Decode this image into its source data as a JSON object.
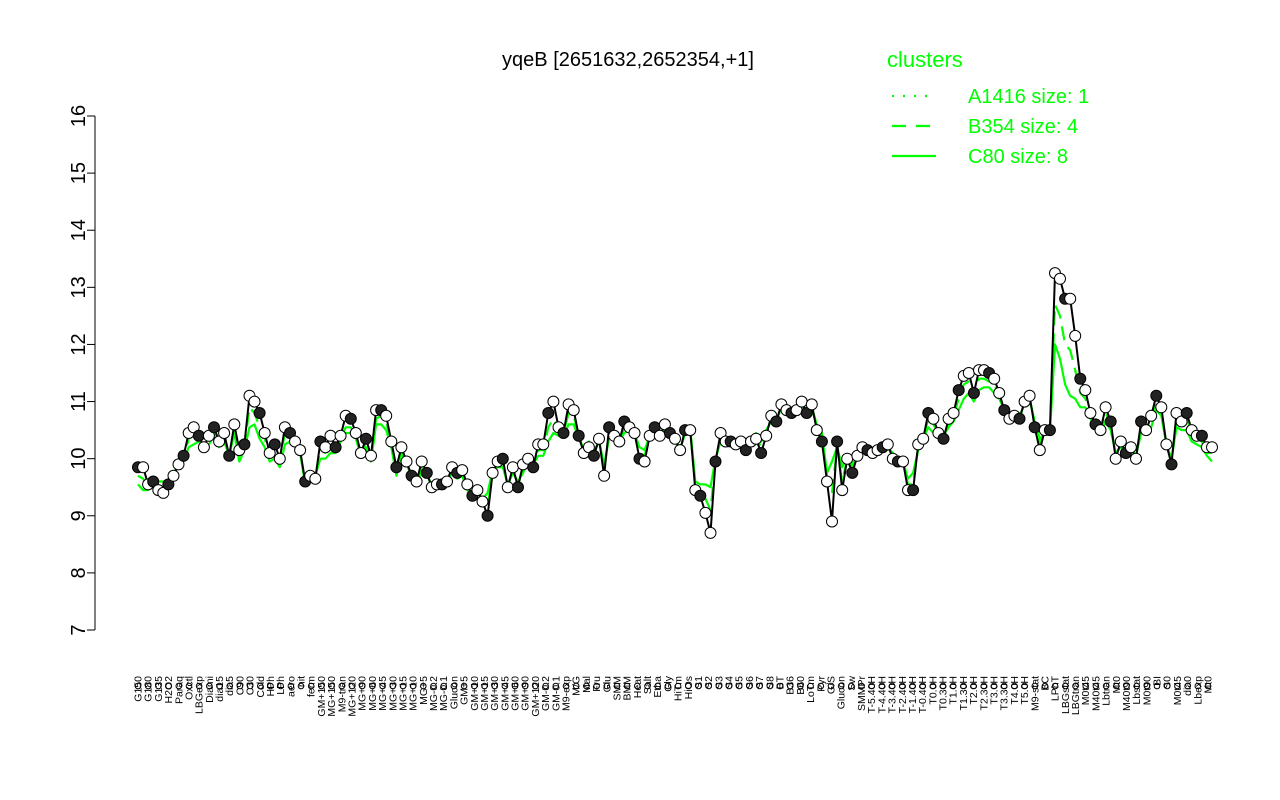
{
  "chart_data": {
    "type": "line",
    "title": "yqeB [2651632,2652354,+1]",
    "xlabel": "",
    "ylabel": "",
    "ylim": [
      7,
      16
    ],
    "yticks": [
      7,
      8,
      9,
      10,
      11,
      12,
      13,
      14,
      15,
      16
    ],
    "grid": false,
    "legend": {
      "title": "clusters",
      "placement": "top-right",
      "color": "#00ff00",
      "entries": [
        {
          "label": "A1416 size: 1",
          "style": "dotted"
        },
        {
          "label": "B354 size: 4",
          "style": "dashed"
        },
        {
          "label": "C80 size: 8",
          "style": "solid"
        }
      ]
    },
    "x_labels": [
      "G150",
      "G180",
      "G135",
      "H2O2",
      "Paraq",
      "Oxctl",
      "LBGexp",
      "Diami",
      "dia15",
      "dia5",
      "C90",
      "C30",
      "Cold",
      "HPh",
      "LPh",
      "aero",
      "nit",
      "ferm",
      "GM+150",
      "MG+150",
      "M9-tran",
      "MG+120",
      "MG+90",
      "MG+60",
      "MG+45",
      "MG+30",
      "MG+15",
      "MG+10",
      "MG+5",
      "MG-0.2",
      "MG-0.1",
      "Glucon",
      "GM+5",
      "GM+10",
      "GM+15",
      "GM+30",
      "GM+45",
      "GM+60",
      "GM+90",
      "GM+120",
      "GM-0.2",
      "GM-0.1",
      "M9-exp",
      "M/G",
      "Mal",
      "Fru",
      "Glu",
      "SMM",
      "BMM",
      "Heat",
      "Salt",
      "Etha",
      "Gly",
      "HiTm",
      "HiOs",
      "S1",
      "S2",
      "S3",
      "S4",
      "S5",
      "S6",
      "S7",
      "S8",
      "BT",
      "B36",
      "B60",
      "LoTm",
      "Pyr",
      "G/S",
      "Glucon",
      "Sw",
      "SMMPr",
      "T-5.40H",
      "T-4.40H",
      "T-3.40H",
      "T-2.40H",
      "T-1.40H",
      "T-0.40H",
      "T0.0H",
      "T0.30H",
      "T1.0H",
      "T1.30H",
      "T2.0H",
      "T2.30H",
      "T3.0H",
      "T3.30H",
      "T4.0H",
      "T5.0H",
      "M9-stat",
      "BC",
      "LPhT",
      "LBGstat",
      "LBGtran",
      "M0t45",
      "M40t45",
      "Lbtran",
      "Mt0",
      "M40t90",
      "Lbstat",
      "M0t90",
      "BI",
      "S0",
      "M0t45",
      "dia0",
      "Lbexp",
      "Mt0"
    ],
    "series": [
      {
        "name": "",
        "color": "#000000",
        "marker": "circle",
        "values": [
          9.85,
          9.85,
          9.55,
          9.6,
          9.45,
          9.4,
          9.55,
          9.7,
          9.9,
          10.05,
          10.45,
          10.55,
          10.4,
          10.2,
          10.4,
          10.55,
          10.3,
          10.45,
          10.05,
          10.6,
          10.15,
          10.25,
          11.1,
          11.0,
          10.8,
          10.45,
          10.1,
          10.25,
          10.0,
          10.55,
          10.45,
          10.3,
          10.15,
          9.6,
          9.7,
          9.65,
          10.3,
          10.2,
          10.4,
          10.2,
          10.4,
          10.75,
          10.7,
          10.45,
          10.1,
          10.35,
          10.05,
          10.85,
          10.85,
          10.75,
          10.3,
          9.85,
          10.2,
          9.95,
          9.7,
          9.6,
          9.95,
          9.75,
          9.5,
          9.55,
          9.55,
          9.6,
          9.85,
          9.75,
          9.8,
          9.55,
          9.35,
          9.45,
          9.25,
          9.0,
          9.75,
          9.95,
          10.0,
          9.5,
          9.85,
          9.5,
          9.9,
          10.0,
          9.85,
          10.25,
          10.25,
          10.8,
          11.0,
          10.55,
          10.45,
          10.95,
          10.85,
          10.4,
          10.1,
          10.2,
          10.05,
          10.35,
          9.7,
          10.55,
          10.4,
          10.3,
          10.65,
          10.55,
          10.45,
          10.0,
          9.95,
          10.4,
          10.55,
          10.4,
          10.6,
          10.45,
          10.35,
          10.15,
          10.5,
          10.5,
          9.45,
          9.35,
          9.05,
          8.7,
          9.95,
          10.45,
          10.3,
          10.3,
          10.25,
          10.3,
          10.15,
          10.3,
          10.35,
          10.1,
          10.4,
          10.75,
          10.65,
          10.95,
          10.85,
          10.8,
          10.85,
          11.0,
          10.8,
          10.95,
          10.5,
          10.3,
          9.6,
          8.9,
          10.3,
          9.45,
          10.0,
          9.75,
          10.05,
          10.2,
          10.15,
          10.1,
          10.15,
          10.2,
          10.25,
          10.0,
          9.95,
          9.95,
          9.45,
          9.45,
          10.25,
          10.35,
          10.8,
          10.7,
          10.45,
          10.35,
          10.7,
          10.8,
          11.2,
          11.45,
          11.5,
          11.15,
          11.55,
          11.55,
          11.5,
          11.4,
          11.15,
          10.85,
          10.7,
          10.75,
          10.7,
          11.0,
          11.1,
          10.55,
          10.15,
          10.5,
          10.5,
          13.25,
          13.15,
          12.8,
          12.8,
          12.15,
          11.4,
          11.2,
          10.8,
          10.6,
          10.5,
          10.9,
          10.65,
          10.0,
          10.3,
          10.1,
          10.2,
          10.0,
          10.65,
          10.5,
          10.75,
          11.1,
          10.9,
          10.25,
          9.9,
          10.8,
          10.65,
          10.8,
          10.5,
          10.4,
          10.4,
          10.2,
          10.2
        ]
      },
      {
        "name": "C80 size: 8",
        "color": "#00ff00",
        "style": "solid",
        "values": [
          9.55,
          9.45,
          9.45,
          9.6,
          9.6,
          9.6,
          9.55,
          9.7,
          9.95,
          9.95,
          10.2,
          10.25,
          10.3,
          10.2,
          10.25,
          10.4,
          10.2,
          10.3,
          10.05,
          10.45,
          9.95,
          10.15,
          10.55,
          10.6,
          10.35,
          10.2,
          9.95,
          10.0,
          9.85,
          10.25,
          10.3,
          10.3,
          10.1,
          9.55,
          9.6,
          9.7,
          10.0,
          10.0,
          10.1,
          10.1,
          10.3,
          10.45,
          10.45,
          10.35,
          10.05,
          10.2,
          9.95,
          10.6,
          10.6,
          10.5,
          10.2,
          9.7,
          10.1,
          9.9,
          9.7,
          9.55,
          9.75,
          9.7,
          9.55,
          9.5,
          9.5,
          9.6,
          9.75,
          9.65,
          9.7,
          9.45,
          9.35,
          9.4,
          9.3,
          9.4,
          9.8,
          9.85,
          9.85,
          9.55,
          9.75,
          9.6,
          9.75,
          9.95,
          9.9,
          10.05,
          10.05,
          10.3,
          10.45,
          10.4,
          10.4,
          10.6,
          10.6,
          10.35,
          10.15,
          10.3,
          10.1,
          10.3,
          9.9,
          10.35,
          10.35,
          10.3,
          10.45,
          10.5,
          10.45,
          10.2,
          10.15,
          10.4,
          10.5,
          10.4,
          10.45,
          10.35,
          10.3,
          10.15,
          10.45,
          10.55,
          9.6,
          9.55,
          9.55,
          9.5,
          10.0,
          10.3,
          10.25,
          10.3,
          10.3,
          10.35,
          10.25,
          10.35,
          10.45,
          10.3,
          10.5,
          10.65,
          10.65,
          10.9,
          10.85,
          10.85,
          10.85,
          10.95,
          10.85,
          10.9,
          10.6,
          10.45,
          9.75,
          9.95,
          10.2,
          9.85,
          10.05,
          9.9,
          10.05,
          10.15,
          10.15,
          10.1,
          10.15,
          10.2,
          10.2,
          10.1,
          10.0,
          9.95,
          9.65,
          9.75,
          10.15,
          10.35,
          10.55,
          10.45,
          10.4,
          10.4,
          10.55,
          10.65,
          10.85,
          11.05,
          11.15,
          11.0,
          11.2,
          11.25,
          11.25,
          11.15,
          11.05,
          10.85,
          10.75,
          10.75,
          10.75,
          10.95,
          11.05,
          10.65,
          10.35,
          10.45,
          10.45,
          12.0,
          11.75,
          11.3,
          11.1,
          11.05,
          10.9,
          10.9,
          10.7,
          10.55,
          10.45,
          10.65,
          10.5,
          10.1,
          10.2,
          10.1,
          10.15,
          10.05,
          10.45,
          10.45,
          10.55,
          10.85,
          10.75,
          10.25,
          10.0,
          10.55,
          10.5,
          10.5,
          10.3,
          10.25,
          10.2,
          10.05,
          9.95
        ]
      },
      {
        "name": "B354 size: 4",
        "color": "#00ff00",
        "style": "dashed",
        "values": [
          9.7,
          9.65,
          9.5,
          9.6,
          9.5,
          9.45,
          9.6,
          9.7,
          9.85,
          10.0,
          10.35,
          10.45,
          10.35,
          10.2,
          10.35,
          10.5,
          10.25,
          10.35,
          10.05,
          10.5,
          10.05,
          10.2,
          10.9,
          10.8,
          10.55,
          10.35,
          10.05,
          10.15,
          9.95,
          10.45,
          10.35,
          10.25,
          10.1,
          9.6,
          9.7,
          9.65,
          10.2,
          10.1,
          10.25,
          10.15,
          10.35,
          10.55,
          10.55,
          10.4,
          10.05,
          10.3,
          10.0,
          10.7,
          10.75,
          10.65,
          10.25,
          9.8,
          10.15,
          9.95,
          9.7,
          9.55,
          9.85,
          9.75,
          9.5,
          9.5,
          9.55,
          9.6,
          9.8,
          9.7,
          9.75,
          9.5,
          9.35,
          9.4,
          9.3,
          9.15,
          9.75,
          9.9,
          9.95,
          9.5,
          9.8,
          9.55,
          9.85,
          9.95,
          9.85,
          10.15,
          10.15,
          10.55,
          10.7,
          10.5,
          10.45,
          10.8,
          10.75,
          10.4,
          10.15,
          10.25,
          10.1,
          10.35,
          9.8,
          10.45,
          10.4,
          10.3,
          10.55,
          10.5,
          10.45,
          10.1,
          10.05,
          10.4,
          10.55,
          10.4,
          10.5,
          10.4,
          10.35,
          10.15,
          10.5,
          10.5,
          9.5,
          9.45,
          9.3,
          9.1,
          9.95,
          10.4,
          10.3,
          10.3,
          10.25,
          10.3,
          10.2,
          10.3,
          10.4,
          10.2,
          10.45,
          10.7,
          10.65,
          10.9,
          10.85,
          10.8,
          10.85,
          10.95,
          10.8,
          10.9,
          10.55,
          10.35,
          9.7,
          9.4,
          10.2,
          9.6,
          10.0,
          9.85,
          10.05,
          10.15,
          10.15,
          10.1,
          10.15,
          10.2,
          10.2,
          10.05,
          9.95,
          9.95,
          9.55,
          9.55,
          10.2,
          10.35,
          10.7,
          10.6,
          10.45,
          10.4,
          10.6,
          10.75,
          11.05,
          11.3,
          11.35,
          11.1,
          11.4,
          11.4,
          11.35,
          11.3,
          11.1,
          10.85,
          10.7,
          10.75,
          10.7,
          11.0,
          11.05,
          10.6,
          10.25,
          10.5,
          10.5,
          12.7,
          12.5,
          12.0,
          11.9,
          11.55,
          11.15,
          11.05,
          10.8,
          10.6,
          10.5,
          10.8,
          10.6,
          10.05,
          10.25,
          10.1,
          10.2,
          10.05,
          10.55,
          10.5,
          10.65,
          11.0,
          10.85,
          10.25,
          9.95,
          10.7,
          10.6,
          10.7,
          10.45,
          10.35,
          10.3,
          10.1,
          10.1
        ]
      }
    ]
  }
}
